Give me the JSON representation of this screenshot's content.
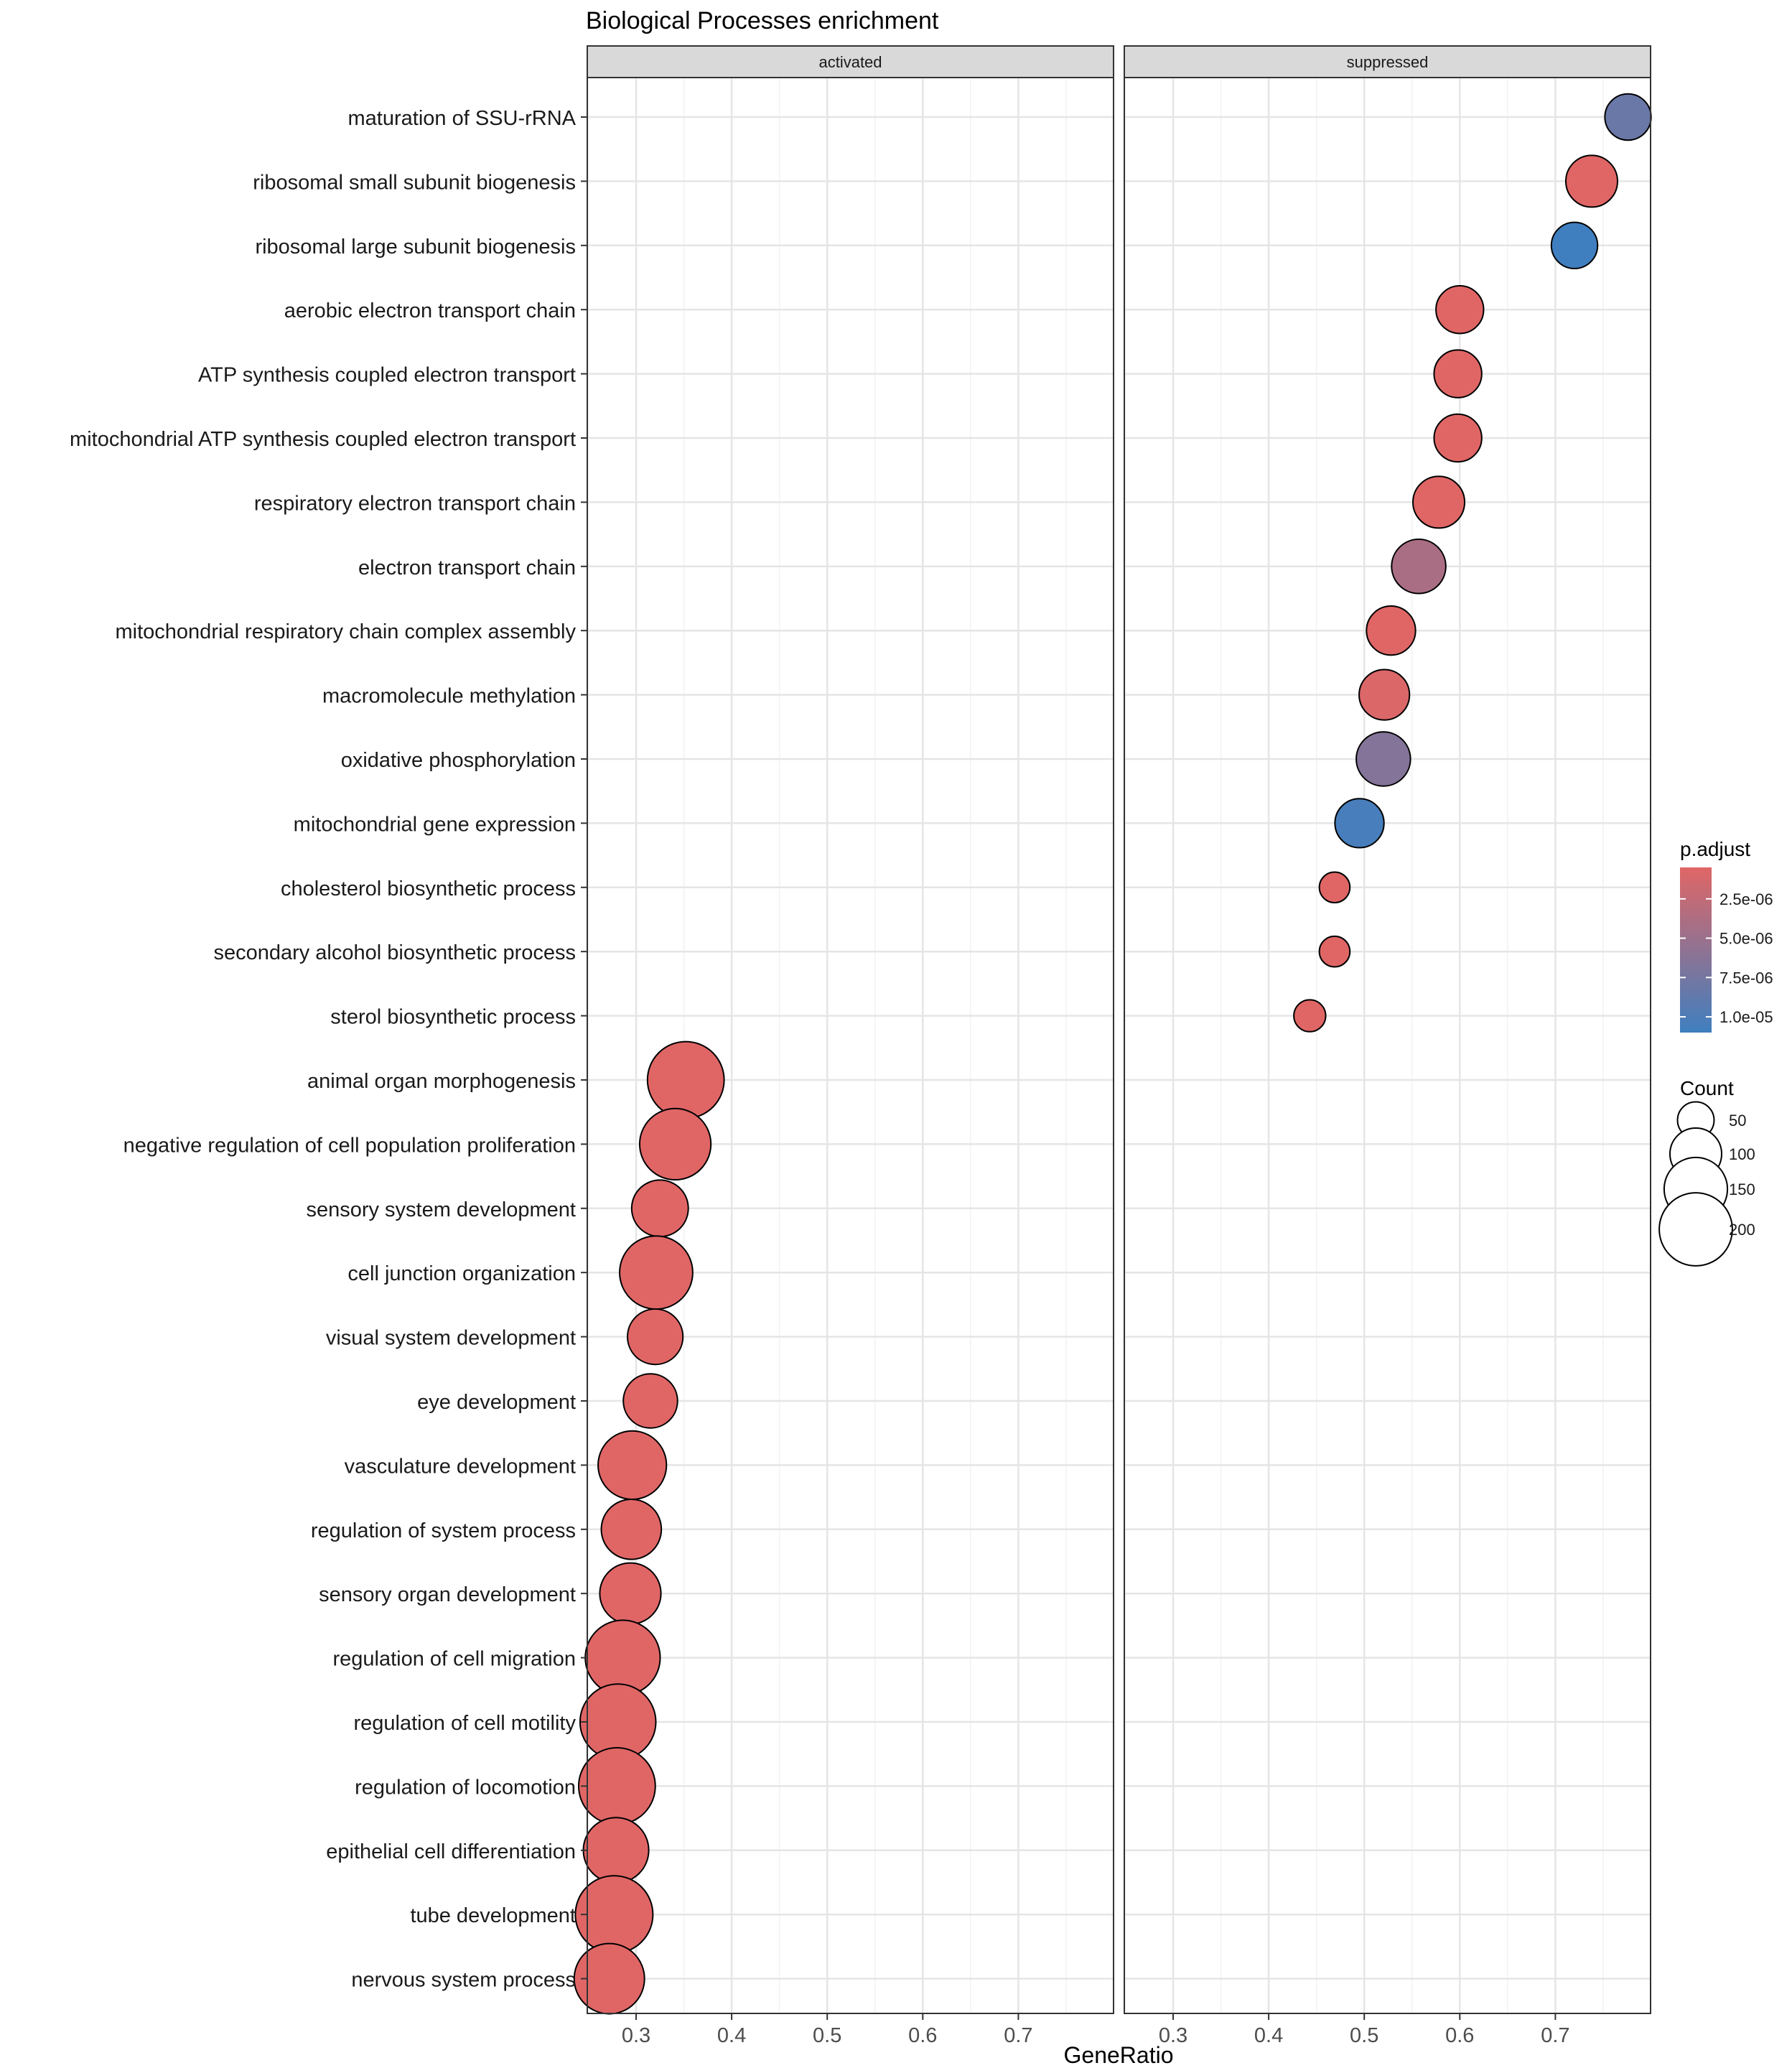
{
  "chart_data": {
    "type": "scatter",
    "title": "Biological Processes enrichment",
    "xlabel": "GeneRatio",
    "ylabel": "",
    "xlim": [
      0.25,
      0.8
    ],
    "x_ticks": [
      0.3,
      0.4,
      0.5,
      0.6,
      0.7
    ],
    "x_tick_labels": [
      "0.3",
      "0.4",
      "0.5",
      "0.6",
      "0.7"
    ],
    "grid": true,
    "facets": [
      "activated",
      "suppressed"
    ],
    "categories": [
      "maturation of SSU-rRNA",
      "ribosomal small subunit biogenesis",
      "ribosomal large subunit biogenesis",
      "aerobic electron transport chain",
      "ATP synthesis coupled electron transport",
      "mitochondrial ATP synthesis coupled electron transport",
      "respiratory electron transport chain",
      "electron transport chain",
      "mitochondrial respiratory chain complex assembly",
      "macromolecule methylation",
      "oxidative phosphorylation",
      "mitochondrial gene expression",
      "cholesterol biosynthetic process",
      "secondary alcohol biosynthetic process",
      "sterol biosynthetic process",
      "animal organ morphogenesis",
      "negative regulation of cell population proliferation",
      "sensory system development",
      "cell junction organization",
      "visual system development",
      "eye development",
      "vasculature development",
      "regulation of system process",
      "sensory organ development",
      "regulation of cell migration",
      "regulation of cell motility",
      "regulation of locomotion",
      "epithelial cell differentiation",
      "tube development",
      "nervous system process"
    ],
    "points": [
      {
        "term": "maturation of SSU-rRNA",
        "facet": "suppressed",
        "x": 0.776,
        "count": 80,
        "p_adjust": 8.2e-06
      },
      {
        "term": "ribosomal small subunit biogenesis",
        "facet": "suppressed",
        "x": 0.738,
        "count": 100,
        "p_adjust": 5e-07
      },
      {
        "term": "ribosomal large subunit biogenesis",
        "facet": "suppressed",
        "x": 0.72,
        "count": 80,
        "p_adjust": 1.1e-05
      },
      {
        "term": "aerobic electron transport chain",
        "facet": "suppressed",
        "x": 0.6,
        "count": 85,
        "p_adjust": 5e-07
      },
      {
        "term": "ATP synthesis coupled electron transport",
        "facet": "suppressed",
        "x": 0.598,
        "count": 85,
        "p_adjust": 5e-07
      },
      {
        "term": "mitochondrial ATP synthesis coupled electron transport",
        "facet": "suppressed",
        "x": 0.598,
        "count": 85,
        "p_adjust": 5e-07
      },
      {
        "term": "respiratory electron transport chain",
        "facet": "suppressed",
        "x": 0.578,
        "count": 100,
        "p_adjust": 5e-07
      },
      {
        "term": "electron transport chain",
        "facet": "suppressed",
        "x": 0.557,
        "count": 110,
        "p_adjust": 4e-06
      },
      {
        "term": "mitochondrial respiratory chain complex assembly",
        "facet": "suppressed",
        "x": 0.528,
        "count": 90,
        "p_adjust": 5e-07
      },
      {
        "term": "macromolecule methylation",
        "facet": "suppressed",
        "x": 0.521,
        "count": 95,
        "p_adjust": 8e-07
      },
      {
        "term": "oxidative phosphorylation",
        "facet": "suppressed",
        "x": 0.52,
        "count": 110,
        "p_adjust": 6.5e-06
      },
      {
        "term": "mitochondrial gene expression",
        "facet": "suppressed",
        "x": 0.495,
        "count": 90,
        "p_adjust": 1.05e-05
      },
      {
        "term": "cholesterol biosynthetic process",
        "facet": "suppressed",
        "x": 0.469,
        "count": 35,
        "p_adjust": 5e-07
      },
      {
        "term": "secondary alcohol biosynthetic process",
        "facet": "suppressed",
        "x": 0.469,
        "count": 35,
        "p_adjust": 5e-07
      },
      {
        "term": "sterol biosynthetic process",
        "facet": "suppressed",
        "x": 0.443,
        "count": 38,
        "p_adjust": 5e-07
      },
      {
        "term": "animal organ morphogenesis",
        "facet": "activated",
        "x": 0.352,
        "count": 220,
        "p_adjust": 5e-07
      },
      {
        "term": "negative regulation of cell population proliferation",
        "facet": "activated",
        "x": 0.341,
        "count": 190,
        "p_adjust": 5e-07
      },
      {
        "term": "sensory system development",
        "facet": "activated",
        "x": 0.325,
        "count": 120,
        "p_adjust": 5e-07
      },
      {
        "term": "cell junction organization",
        "facet": "activated",
        "x": 0.321,
        "count": 200,
        "p_adjust": 5e-07
      },
      {
        "term": "visual system development",
        "facet": "activated",
        "x": 0.32,
        "count": 115,
        "p_adjust": 5e-07
      },
      {
        "term": "eye development",
        "facet": "activated",
        "x": 0.315,
        "count": 110,
        "p_adjust": 5e-07
      },
      {
        "term": "vasculature development",
        "facet": "activated",
        "x": 0.296,
        "count": 175,
        "p_adjust": 5e-07
      },
      {
        "term": "regulation of system process",
        "facet": "activated",
        "x": 0.295,
        "count": 135,
        "p_adjust": 5e-07
      },
      {
        "term": "sensory organ development",
        "facet": "activated",
        "x": 0.294,
        "count": 140,
        "p_adjust": 5e-07
      },
      {
        "term": "regulation of cell migration",
        "facet": "activated",
        "x": 0.286,
        "count": 210,
        "p_adjust": 5e-07
      },
      {
        "term": "regulation of cell motility",
        "facet": "activated",
        "x": 0.281,
        "count": 215,
        "p_adjust": 5e-07
      },
      {
        "term": "regulation of locomotion",
        "facet": "activated",
        "x": 0.28,
        "count": 220,
        "p_adjust": 5e-07
      },
      {
        "term": "epithelial cell differentiation",
        "facet": "activated",
        "x": 0.279,
        "count": 160,
        "p_adjust": 5e-07
      },
      {
        "term": "tube development",
        "facet": "activated",
        "x": 0.277,
        "count": 225,
        "p_adjust": 5e-07
      },
      {
        "term": "nervous system process",
        "facet": "activated",
        "x": 0.272,
        "count": 185,
        "p_adjust": 5e-07
      }
    ],
    "legend": {
      "placement": "right",
      "color": {
        "title": "p.adjust",
        "range": [
          5e-07,
          1.1e-05
        ],
        "low_color": "#E06666",
        "high_color": "#3F7FBF",
        "ticks": [
          2.5e-06,
          5e-06,
          7.5e-06,
          1e-05
        ],
        "tick_labels": [
          "2.5e-06",
          "5.0e-06",
          "7.5e-06",
          "1.0e-05"
        ]
      },
      "size": {
        "title": "Count",
        "values": [
          50,
          100,
          150,
          200
        ],
        "labels": [
          "50",
          "100",
          "150",
          "200"
        ]
      }
    },
    "colors": {
      "panel_border": "#333333",
      "strip_fill": "#D9D9D9",
      "grid_major": "#E5E5E5",
      "grid_minor": "#F2F2F2",
      "point_outline": "#000000"
    }
  }
}
